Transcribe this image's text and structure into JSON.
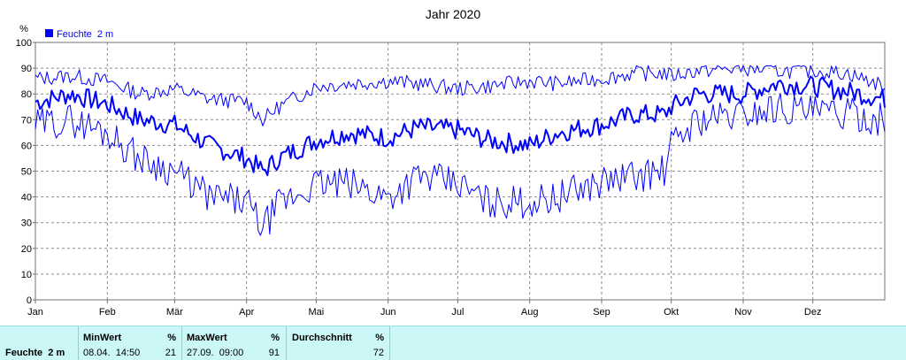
{
  "chart_data": {
    "type": "line",
    "title": "Jahr 2020",
    "ylabel": "%",
    "ylim": [
      0,
      100
    ],
    "yticks": [
      0,
      10,
      20,
      30,
      40,
      50,
      60,
      70,
      80,
      90,
      100
    ],
    "xlim": [
      0,
      366
    ],
    "month_ticks": [
      {
        "label": "Jan",
        "day": 0
      },
      {
        "label": "Feb",
        "day": 31
      },
      {
        "label": "Mär",
        "day": 60
      },
      {
        "label": "Apr",
        "day": 91
      },
      {
        "label": "Mai",
        "day": 121
      },
      {
        "label": "Jun",
        "day": 152
      },
      {
        "label": "Jul",
        "day": 182
      },
      {
        "label": "Aug",
        "day": 213
      },
      {
        "label": "Sep",
        "day": 244
      },
      {
        "label": "Okt",
        "day": 274
      },
      {
        "label": "Nov",
        "day": 305
      },
      {
        "label": "Dez",
        "day": 335
      }
    ],
    "grid": true,
    "legend_position": "top-left",
    "legend": [
      {
        "name": "Feuchte  2 m",
        "color": "#0000ff"
      }
    ],
    "x": [
      1,
      15,
      31,
      45,
      60,
      75,
      91,
      98,
      105,
      121,
      135,
      152,
      165,
      182,
      195,
      213,
      225,
      244,
      258,
      271,
      274,
      285,
      305,
      320,
      335,
      350,
      366
    ],
    "series": [
      {
        "name": "Feuchte  2 m",
        "role": "mean",
        "values": [
          77,
          80,
          76,
          70,
          68,
          60,
          55,
          50,
          55,
          62,
          65,
          63,
          67,
          66,
          62,
          60,
          65,
          68,
          72,
          72,
          75,
          80,
          80,
          84,
          83,
          81,
          78
        ]
      },
      {
        "name": "max",
        "role": "max",
        "values": [
          86,
          87,
          85,
          80,
          82,
          78,
          77,
          70,
          75,
          83,
          84,
          85,
          84,
          82,
          83,
          85,
          84,
          86,
          88,
          88,
          87,
          89,
          90,
          89,
          89,
          88,
          83
        ]
      },
      {
        "name": "min",
        "role": "min",
        "values": [
          68,
          70,
          65,
          55,
          50,
          40,
          38,
          28,
          37,
          45,
          45,
          40,
          48,
          45,
          38,
          38,
          40,
          46,
          48,
          50,
          60,
          70,
          72,
          75,
          73,
          72,
          70
        ]
      }
    ],
    "series_color": "#0000ff"
  },
  "stats": {
    "row_label": "Feuchte  2 m",
    "min": {
      "label": "MinWert",
      "unit": "%",
      "when": "08.04.  14:50",
      "value": "21"
    },
    "max": {
      "label": "MaxWert",
      "unit": "%",
      "when": "27.09.  09:00",
      "value": "91"
    },
    "avg": {
      "label": "Durchschnitt",
      "unit": "%",
      "value": "72"
    }
  }
}
